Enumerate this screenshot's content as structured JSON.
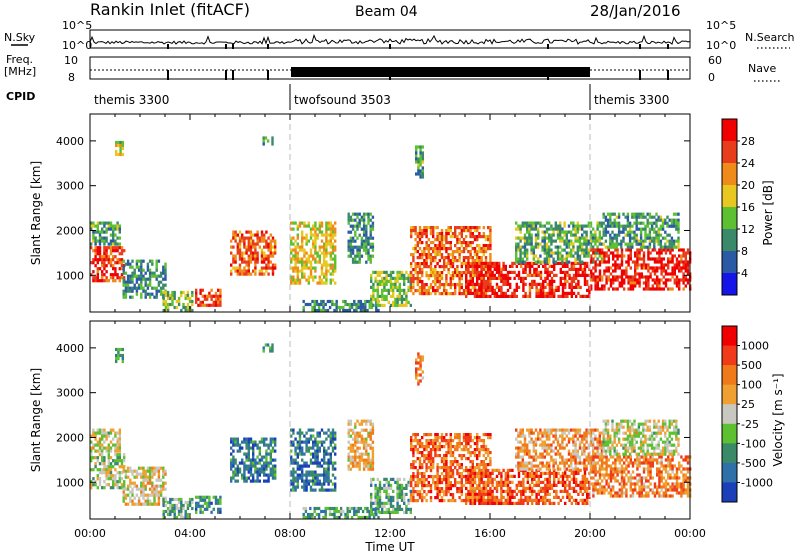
{
  "header": {
    "title": "Rankin Inlet (fitACF)",
    "beam": "Beam 04",
    "date": "28/Jan/2016"
  },
  "strip_labels": {
    "nsky": "N.Sky",
    "nsky_top": "10^5",
    "nsky_bot": "10^0",
    "nsearch": "N.Search",
    "nsearch_top": "10^5",
    "nsearch_bot": "10^0",
    "freq": "Freq.",
    "freq_unit": "[MHz]",
    "freq_top": "10",
    "freq_bot": "8",
    "nave": "Nave",
    "nave_top": "60",
    "nave_bot": "0",
    "cpid": "CPID"
  },
  "cpid_segments": [
    {
      "label": "themis 3300",
      "start_h": 0,
      "end_h": 8
    },
    {
      "label": "twofsound 3503",
      "start_h": 8,
      "end_h": 20
    },
    {
      "label": "themis 3300",
      "start_h": 20,
      "end_h": 24
    }
  ],
  "chart_data": [
    {
      "type": "heatmap",
      "name": "power-panel",
      "xlabel": "Time UT",
      "ylabel": "Slant Range [km]",
      "xlim": [
        0,
        24
      ],
      "ylim": [
        180,
        4600
      ],
      "yticks": [
        "1000",
        "2000",
        "3000",
        "4000"
      ],
      "colorbar_label": "Power [dB]",
      "colorbar_ticks": [
        "4",
        "8",
        "12",
        "16",
        "20",
        "24",
        "28"
      ],
      "colorbar_range": [
        0,
        32
      ],
      "colors": [
        "#1515e8",
        "#2a5aa6",
        "#3a8a6a",
        "#5cc030",
        "#e8c820",
        "#f08a1a",
        "#e83d1a",
        "#f00000"
      ],
      "echo_regions": [
        {
          "t0": 0.0,
          "t1": 1.4,
          "r0": 850,
          "r1": 1650,
          "level": 0.85
        },
        {
          "t0": 0.0,
          "t1": 1.2,
          "r0": 1700,
          "r1": 2200,
          "level": 0.35
        },
        {
          "t0": 1.3,
          "t1": 3.0,
          "r0": 500,
          "r1": 1350,
          "level": 0.3
        },
        {
          "t0": 2.9,
          "t1": 4.1,
          "r0": 200,
          "r1": 650,
          "level": 0.45
        },
        {
          "t0": 4.2,
          "t1": 5.2,
          "r0": 300,
          "r1": 700,
          "level": 0.85
        },
        {
          "t0": 5.6,
          "t1": 7.4,
          "r0": 1000,
          "r1": 2000,
          "level": 0.75
        },
        {
          "t0": 8.0,
          "t1": 9.8,
          "r0": 800,
          "r1": 2200,
          "level": 0.55
        },
        {
          "t0": 8.5,
          "t1": 11.5,
          "r0": 200,
          "r1": 450,
          "level": 0.3
        },
        {
          "t0": 10.3,
          "t1": 11.3,
          "r0": 1300,
          "r1": 2400,
          "level": 0.3
        },
        {
          "t0": 11.2,
          "t1": 12.8,
          "r0": 300,
          "r1": 1100,
          "level": 0.45
        },
        {
          "t0": 12.8,
          "t1": 16.0,
          "r0": 600,
          "r1": 2100,
          "level": 0.75
        },
        {
          "t0": 15.0,
          "t1": 20.0,
          "r0": 500,
          "r1": 1300,
          "level": 0.9
        },
        {
          "t0": 17.0,
          "t1": 20.5,
          "r0": 1300,
          "r1": 2200,
          "level": 0.4
        },
        {
          "t0": 20.0,
          "t1": 24.0,
          "r0": 700,
          "r1": 1600,
          "level": 0.9
        },
        {
          "t0": 20.5,
          "t1": 23.5,
          "r0": 1600,
          "r1": 2400,
          "level": 0.35
        },
        {
          "t0": 1.0,
          "t1": 1.3,
          "r0": 3700,
          "r1": 4000,
          "level": 0.5
        },
        {
          "t0": 6.9,
          "t1": 7.3,
          "r0": 3900,
          "r1": 4100,
          "level": 0.35
        },
        {
          "t0": 13.0,
          "t1": 13.3,
          "r0": 3200,
          "r1": 3900,
          "level": 0.35
        }
      ]
    },
    {
      "type": "heatmap",
      "name": "velocity-panel",
      "xlabel": "Time UT",
      "ylabel": "Slant Range [km]",
      "xlim": [
        0,
        24
      ],
      "ylim": [
        180,
        4600
      ],
      "yticks": [
        "1000",
        "2000",
        "3000",
        "4000"
      ],
      "xticks": [
        "00:00",
        "04:00",
        "08:00",
        "12:00",
        "16:00",
        "20:00",
        "00:00"
      ],
      "colorbar_label": "Velocity [m s⁻¹]",
      "colorbar_ticks": [
        "1000",
        "500",
        "100",
        "25",
        "-25",
        "-100",
        "-500",
        "-1000"
      ],
      "colors": [
        "#1a3fb8",
        "#2e70a8",
        "#3a8a6a",
        "#5cc030",
        "#c8c8c0",
        "#f0a030",
        "#f07a1a",
        "#f03a1a",
        "#f00000"
      ],
      "echo_regions": [
        {
          "t0": 0.0,
          "t1": 1.4,
          "r0": 850,
          "r1": 1650,
          "level": 0.45
        },
        {
          "t0": 0.0,
          "t1": 1.2,
          "r0": 1700,
          "r1": 2200,
          "level": 0.5
        },
        {
          "t0": 1.3,
          "t1": 3.0,
          "r0": 500,
          "r1": 1350,
          "level": 0.55
        },
        {
          "t0": 2.9,
          "t1": 4.1,
          "r0": 200,
          "r1": 650,
          "level": 0.35
        },
        {
          "t0": 4.2,
          "t1": 5.2,
          "r0": 300,
          "r1": 700,
          "level": 0.25
        },
        {
          "t0": 5.6,
          "t1": 7.4,
          "r0": 1000,
          "r1": 2000,
          "level": 0.2
        },
        {
          "t0": 8.0,
          "t1": 9.8,
          "r0": 800,
          "r1": 2200,
          "level": 0.2
        },
        {
          "t0": 8.5,
          "t1": 11.5,
          "r0": 200,
          "r1": 450,
          "level": 0.3
        },
        {
          "t0": 10.3,
          "t1": 11.3,
          "r0": 1300,
          "r1": 2400,
          "level": 0.6
        },
        {
          "t0": 11.2,
          "t1": 12.8,
          "r0": 300,
          "r1": 1100,
          "level": 0.35
        },
        {
          "t0": 12.8,
          "t1": 16.0,
          "r0": 600,
          "r1": 2100,
          "level": 0.75
        },
        {
          "t0": 15.0,
          "t1": 20.0,
          "r0": 500,
          "r1": 1300,
          "level": 0.8
        },
        {
          "t0": 17.0,
          "t1": 20.5,
          "r0": 1300,
          "r1": 2200,
          "level": 0.65
        },
        {
          "t0": 20.0,
          "t1": 24.0,
          "r0": 700,
          "r1": 1600,
          "level": 0.7
        },
        {
          "t0": 20.5,
          "t1": 23.5,
          "r0": 1600,
          "r1": 2400,
          "level": 0.5
        },
        {
          "t0": 1.0,
          "t1": 1.3,
          "r0": 3700,
          "r1": 4000,
          "level": 0.3
        },
        {
          "t0": 6.9,
          "t1": 7.3,
          "r0": 3900,
          "r1": 4100,
          "level": 0.25
        },
        {
          "t0": 13.0,
          "t1": 13.3,
          "r0": 3200,
          "r1": 3900,
          "level": 0.7
        }
      ]
    }
  ]
}
